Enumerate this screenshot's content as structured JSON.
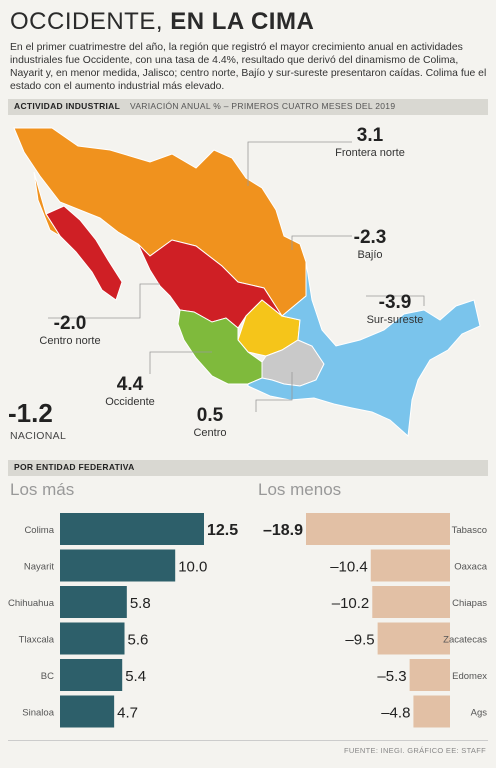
{
  "header": {
    "title_light": "OCCIDENTE,",
    "title_bold": "EN LA CIMA",
    "intro": "En el primer cuatrimestre del año, la región que registró el mayor crecimiento anual en actividades industriales fue Occidente, con una tasa de 4.4%, resultado que derivó del dinamismo de Colima, Nayarit y, en menor medida, Jalisco; centro norte, Bajío y sur-sureste presentaron caídas. Colima fue el estado con el aumento industrial más elevado."
  },
  "map_band": {
    "label": "ACTIVIDAD INDUSTRIAL",
    "sub": "VARIACIÓN ANUAL % – PRIMEROS CUATRO MESES DEL 2019"
  },
  "regions": [
    {
      "name": "Frontera norte",
      "value": "3.1",
      "color": "#f0921e"
    },
    {
      "name": "Bajío",
      "value": "-2.3",
      "color": "#f5c51a"
    },
    {
      "name": "Sur-sureste",
      "value": "-3.9",
      "color": "#7ac4ec"
    },
    {
      "name": "Centro norte",
      "value": "-2.0",
      "color": "#cf1f25"
    },
    {
      "name": "Occidente",
      "value": "4.4",
      "color": "#7fba3c"
    },
    {
      "name": "Centro",
      "value": "0.5",
      "color": "#c9c9c9"
    }
  ],
  "national": {
    "value": "-1.2",
    "label": "NACIONAL"
  },
  "states_band": {
    "label": "POR ENTIDAD FEDERATIVA"
  },
  "columns": {
    "top": "Los más",
    "bottom": "Los menos"
  },
  "source": "FUENTE: INEGI. GRÁFICO EE: STAFF",
  "chart_data": [
    {
      "type": "bar",
      "title": "Los más",
      "categories": [
        "Colima",
        "Nayarit",
        "Chihuahua",
        "Tlaxcala",
        "BC",
        "Sinaloa"
      ],
      "values": [
        12.5,
        10.0,
        5.8,
        5.6,
        5.4,
        4.7
      ],
      "labels": [
        "12.5",
        "10.0",
        "5.8",
        "5.6",
        "5.4",
        "4.7"
      ],
      "color": "#2d5f6a"
    },
    {
      "type": "bar",
      "title": "Los menos",
      "categories": [
        "Tabasco",
        "Oaxaca",
        "Chiapas",
        "Zacatecas",
        "Edomex",
        "Ags"
      ],
      "values": [
        -18.9,
        -10.4,
        -10.2,
        -9.5,
        -5.3,
        -4.8
      ],
      "labels": [
        "–18.9",
        "–10.4",
        "–10.2",
        "–9.5",
        "–5.3",
        "–4.8"
      ],
      "color": "#e2c0a5"
    }
  ]
}
